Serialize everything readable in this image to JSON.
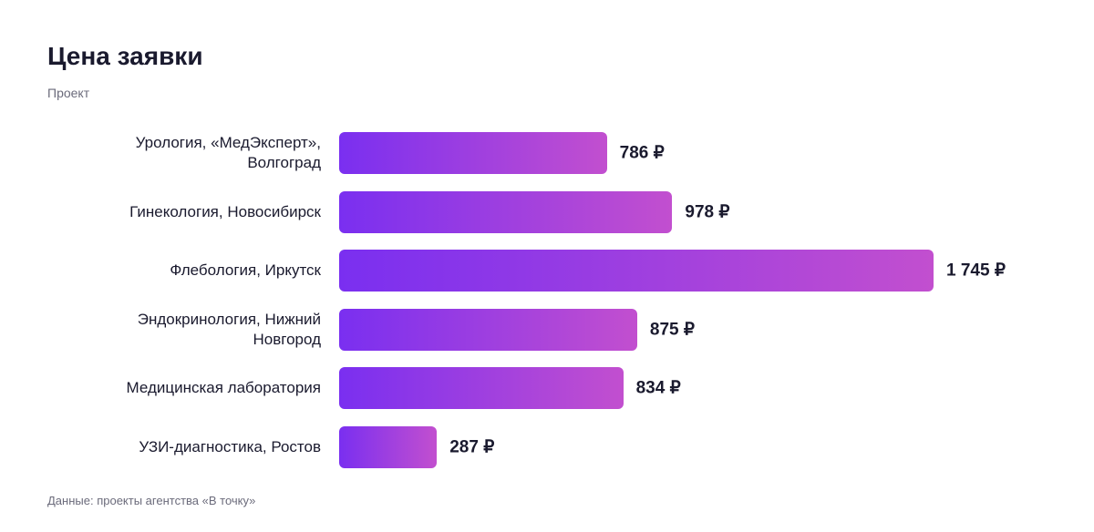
{
  "chart_data": {
    "type": "bar",
    "orientation": "horizontal",
    "title": "Цена заявки",
    "subtitle": "Проект",
    "categories": [
      "Урология, «МедЭксперт», Волгоград",
      "Гинекология, Новосибирск",
      "Флебология, Иркутск",
      "Эндокринология, Нижний Новгород",
      "Медицинская лаборатория",
      "УЗИ-диагностика, Ростов"
    ],
    "values": [
      786,
      978,
      1745,
      875,
      834,
      287
    ],
    "value_labels": [
      "786 ₽",
      "978 ₽",
      "1 745 ₽",
      "875 ₽",
      "834 ₽",
      "287 ₽"
    ],
    "colors": [
      "#7a2ff0",
      "#c24fcf"
    ],
    "source": "Данные: проекты агентства «В точку»"
  }
}
